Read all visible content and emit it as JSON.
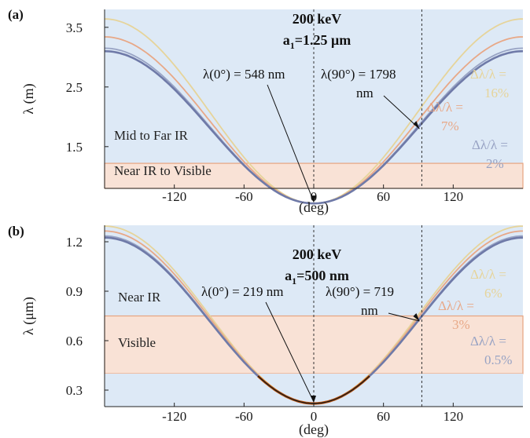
{
  "chart_data": [
    {
      "panel_label": "(a)",
      "type": "line",
      "title": "200 keV",
      "subtitle_main": "a",
      "subtitle_sub": "1",
      "subtitle_rest": "=1.25 μm",
      "xlabel": "(deg)",
      "ylabel": "λ (m)",
      "xlim": [
        -180,
        180
      ],
      "ylim": [
        0.8,
        3.8
      ],
      "xticks": [
        "-120",
        "-60",
        "0",
        "60",
        "120"
      ],
      "xtick_values": [
        -120,
        -60,
        0,
        60,
        120
      ],
      "yticks": [
        "1.5",
        "2.5",
        "3.5"
      ],
      "ytick_values": [
        1.5,
        2.5,
        3.5
      ],
      "grid": false,
      "vlines": [
        0,
        93
      ],
      "regions": [
        {
          "label": "Mid to Far IR",
          "y_from": 1.22,
          "y_to": 3.8,
          "color": "#dde9f6"
        },
        {
          "label": "Near IR to Visible",
          "y_from": 0.8,
          "y_to": 1.22,
          "color": "#f9e2d6"
        }
      ],
      "annotations": [
        {
          "text": "λ(0°) = 548 nm",
          "x": 0,
          "y": 0.548
        },
        {
          "text_line1": "λ(90°) = 1798",
          "text_line2": "nm",
          "x": 90,
          "y": 1.798
        }
      ],
      "series": [
        {
          "label_line1": "Δλ/λ =",
          "label_line2": "16%",
          "color": "#e6d49a",
          "min": 0.548,
          "max": 3.64
        },
        {
          "label_line1": "Δλ/λ =",
          "label_line2": "7%",
          "color": "#e8a887",
          "min": 0.548,
          "max": 3.34
        },
        {
          "label_line1": "Δλ/λ =",
          "label_line2": "2%",
          "color": "#98a3c4",
          "min": 0.548,
          "max": 3.15
        },
        {
          "color": "#6f7aa8",
          "min": 0.548,
          "max": 3.1
        }
      ]
    },
    {
      "panel_label": "(b)",
      "type": "line",
      "title": "200 keV",
      "subtitle_main": "a",
      "subtitle_sub": "1",
      "subtitle_rest": "=500 nm",
      "xlabel": "(deg)",
      "ylabel": "λ (μm)",
      "xlim": [
        -180,
        180
      ],
      "ylim": [
        0.2,
        1.3
      ],
      "xticks": [
        "-120",
        "-60",
        "0",
        "60",
        "120"
      ],
      "xtick_values": [
        -120,
        -60,
        0,
        60,
        120
      ],
      "yticks": [
        "0.3",
        "0.6",
        "0.9",
        "1.2"
      ],
      "ytick_values": [
        0.3,
        0.6,
        0.9,
        1.2
      ],
      "grid": false,
      "vlines": [
        0,
        93
      ],
      "regions": [
        {
          "label": "Near IR",
          "y_from": 0.75,
          "y_to": 1.3,
          "color": "#dde9f6"
        },
        {
          "label": "Visible",
          "y_from": 0.4,
          "y_to": 0.75,
          "color": "#f9e2d6"
        },
        {
          "label": "",
          "y_from": 0.2,
          "y_to": 0.4,
          "color": "#dde9f6"
        }
      ],
      "annotations": [
        {
          "text": "λ(0°) = 219 nm",
          "x": 0,
          "y": 0.219
        },
        {
          "text_line1": "λ(90°) = 719",
          "text_line2": "nm",
          "x": 90,
          "y": 0.719
        }
      ],
      "series": [
        {
          "label_line1": "Δλ/λ =",
          "label_line2": "6%",
          "color": "#e6d49a",
          "min": 0.219,
          "max": 1.295
        },
        {
          "label_line1": "Δλ/λ =",
          "label_line2": "3%",
          "color": "#e8a887",
          "min": 0.219,
          "max": 1.265
        },
        {
          "label_line1": "Δλ/λ =",
          "label_line2": "0.5%",
          "color": "#98a3c4",
          "min": 0.219,
          "max": 1.235
        },
        {
          "color": "#6f7aa8",
          "min": 0.219,
          "max": 1.225
        }
      ]
    }
  ]
}
